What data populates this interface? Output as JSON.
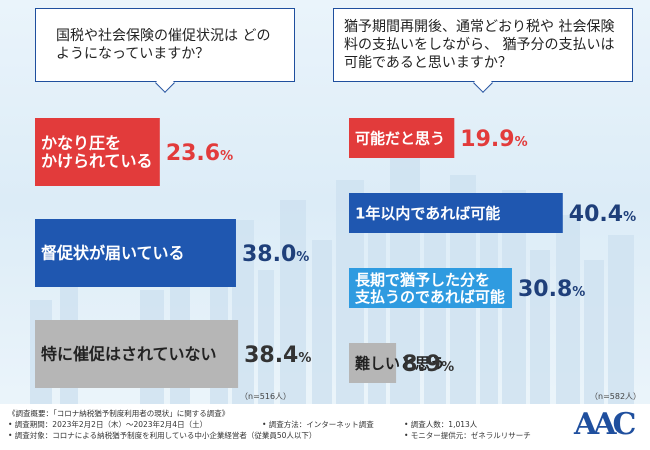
{
  "left_panel": {
    "question": "国税や社会保険の催促状況は どのようになっていますか？",
    "sample": "（n=516人）"
  },
  "right_panel": {
    "question": "猶予期間再開後、通常どおり税や 社会保険料の支払いをしながら、 猶予分の支払いは可能であると思いますか？",
    "sample": "（n=582人）"
  },
  "footer": {
    "survey_summary": "《調査概要：「コロナ納税猶予制度利用者の現状」に関する調査》",
    "period": "• 調査期間：2023年2月2日（木）～2023年2月4日（土）",
    "method": "• 調査方法：インターネット調査",
    "respondents": "• 調査人数：1,013人",
    "target": "• 調査対象：コロナによる納税猶予制度を利用している中小企業経営者（従業員50人以下）",
    "provider": "• モニター提供元：ゼネラルリサーチ",
    "logo": "AAC"
  },
  "colors": {
    "red": "#e23b3b",
    "blue": "#1f57b0",
    "light_blue": "#2f9be0",
    "gray": "#b6b6b6"
  },
  "chart_data": [
    {
      "type": "bar",
      "title": "国税や社会保険の催促状況は どのようになっていますか？",
      "n": "n=516人",
      "categories": [
        "かなり圧を かけられている",
        "督促状が届いている",
        "特に催促はされていない"
      ],
      "values": [
        23.6,
        38.0,
        38.4
      ],
      "value_labels": [
        "23.6%",
        "38.0%",
        "38.4%"
      ],
      "colors": [
        "red",
        "blue",
        "gray"
      ],
      "xlim": [
        0,
        45
      ]
    },
    {
      "type": "bar",
      "title": "猶予期間再開後、通常どおり税や 社会保険料の支払いをしながら、 猶予分の支払いは可能であると思いますか？",
      "n": "n=582人",
      "categories": [
        "可能だと思う",
        "1年以内であれば可能",
        "長期で猶予した分を 支払うのであれば可能",
        "難しいと思う"
      ],
      "values": [
        19.9,
        40.4,
        30.8,
        8.9
      ],
      "value_labels": [
        "19.9%",
        "40.4%",
        "30.8%",
        "8.9%"
      ],
      "colors": [
        "red",
        "blue",
        "light_blue",
        "gray"
      ],
      "xlim": [
        0,
        48
      ]
    }
  ]
}
